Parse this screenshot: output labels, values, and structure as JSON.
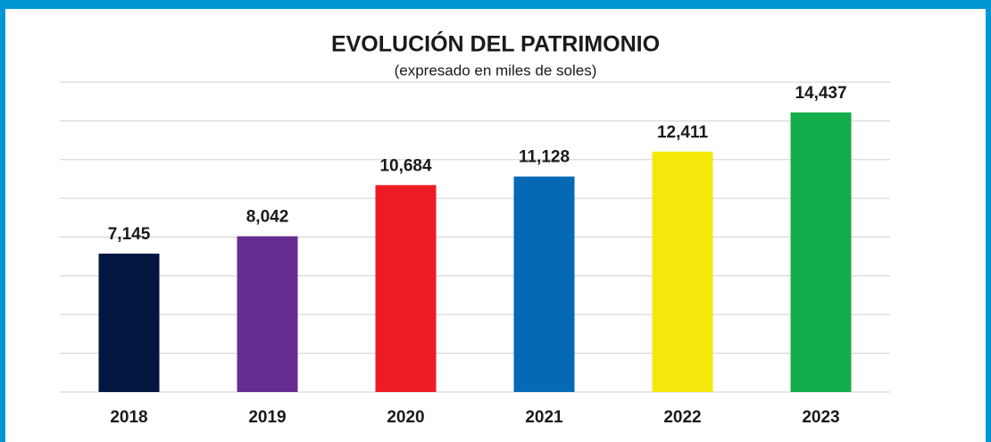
{
  "chart_data": {
    "type": "bar",
    "title": "EVOLUCIÓN DEL PATRIMONIO",
    "subtitle": "(expresado  en  miles de soles)",
    "categories": [
      "2018",
      "2019",
      "2020",
      "2021",
      "2022",
      "2023"
    ],
    "values": [
      7145,
      8042,
      10684,
      11128,
      12411,
      14437
    ],
    "value_labels": [
      "7,145",
      "8,042",
      "10,684",
      "11,128",
      "12,411",
      "14,437"
    ],
    "colors": [
      "#031640",
      "#662d91",
      "#ed1c24",
      "#0569b5",
      "#f4e80b",
      "#14ad4b"
    ],
    "ylim": [
      0,
      16000
    ],
    "yticks": [
      0,
      2000,
      4000,
      6000,
      8000,
      10000,
      12000,
      14000,
      16000
    ],
    "grid": true
  }
}
